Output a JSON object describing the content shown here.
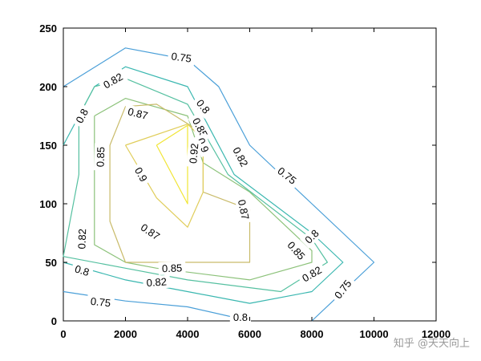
{
  "chart_data": {
    "type": "contour",
    "title": "",
    "xlabel": "",
    "ylabel": "",
    "xlim": [
      0,
      12000
    ],
    "ylim": [
      0,
      250
    ],
    "xticks": [
      0,
      2000,
      4000,
      6000,
      8000,
      10000,
      12000
    ],
    "yticks": [
      0,
      50,
      100,
      150,
      200,
      250
    ],
    "grid": false,
    "colormap": "parula",
    "levels": [
      {
        "value": 0.75,
        "color": "#4a9fd8",
        "paths": [
          [
            [
              0,
              200
            ],
            [
              2000,
              233
            ],
            [
              4000,
              223
            ],
            [
              5000,
              200
            ],
            [
              6000,
              150
            ],
            [
              8000,
              100
            ],
            [
              10000,
              50
            ],
            [
              8000,
              0
            ]
          ],
          [
            [
              0,
              25
            ],
            [
              2000,
              17
            ],
            [
              4000,
              12
            ],
            [
              6000,
              0
            ]
          ]
        ]
      },
      {
        "value": 0.8,
        "color": "#3ab7b0",
        "paths": [
          [
            [
              0,
              150
            ],
            [
              1000,
              200
            ],
            [
              2000,
              217
            ],
            [
              4000,
              200
            ],
            [
              5500,
              125
            ],
            [
              8000,
              75
            ],
            [
              9000,
              50
            ],
            [
              8000,
              25
            ],
            [
              6000,
              15
            ],
            [
              4000,
              25
            ],
            [
              2000,
              35
            ],
            [
              0,
              50
            ]
          ]
        ]
      },
      {
        "value": 0.82,
        "color": "#55c0a0",
        "paths": [
          [
            [
              500,
              175
            ],
            [
              1000,
              200
            ],
            [
              2000,
              207
            ],
            [
              4000,
              185
            ],
            [
              5300,
              125
            ],
            [
              8000,
              70
            ],
            [
              8500,
              50
            ],
            [
              7000,
              25
            ],
            [
              4000,
              35
            ],
            [
              2000,
              45
            ],
            [
              0,
              55
            ],
            [
              500,
              125
            ],
            [
              500,
              175
            ]
          ]
        ]
      },
      {
        "value": 0.85,
        "color": "#8cc27a",
        "paths": [
          [
            [
              1000,
              175
            ],
            [
              2000,
              190
            ],
            [
              4000,
              175
            ],
            [
              4500,
              135
            ],
            [
              6000,
              110
            ],
            [
              8000,
              60
            ],
            [
              8000,
              50
            ],
            [
              6000,
              35
            ],
            [
              3000,
              45
            ],
            [
              2000,
              50
            ],
            [
              1000,
              65
            ],
            [
              1000,
              120
            ],
            [
              1000,
              175
            ]
          ]
        ]
      },
      {
        "value": 0.87,
        "color": "#c9bb6a",
        "paths": [
          [
            [
              1500,
              150
            ],
            [
              2000,
              183
            ],
            [
              3000,
              185
            ],
            [
              4500,
              160
            ],
            [
              4500,
              110
            ],
            [
              6000,
              95
            ],
            [
              6000,
              50
            ],
            [
              4000,
              50
            ],
            [
              2000,
              50
            ],
            [
              1500,
              85
            ],
            [
              1500,
              150
            ]
          ]
        ]
      },
      {
        "value": 0.9,
        "color": "#e0cd5a",
        "paths": [
          [
            [
              2000,
              150
            ],
            [
              4000,
              168
            ],
            [
              4500,
              155
            ],
            [
              4500,
              110
            ],
            [
              4000,
              80
            ],
            [
              3000,
              105
            ],
            [
              2000,
              150
            ]
          ]
        ]
      },
      {
        "value": 0.92,
        "color": "#f1e534",
        "paths": [
          [
            [
              3000,
              150
            ],
            [
              4000,
              167
            ],
            [
              4000,
              100
            ],
            [
              3000,
              150
            ]
          ]
        ]
      }
    ],
    "labels": [
      {
        "text": "0.75",
        "x": 3800,
        "y": 225,
        "angle": 8
      },
      {
        "text": "0.75",
        "x": 7200,
        "y": 124,
        "angle": 38
      },
      {
        "text": "0.75",
        "x": 9000,
        "y": 27,
        "angle": -52
      },
      {
        "text": "0.75",
        "x": 1200,
        "y": 16,
        "angle": 6
      },
      {
        "text": "0.8",
        "x": 600,
        "y": 175,
        "angle": -62
      },
      {
        "text": "0.8",
        "x": 4500,
        "y": 183,
        "angle": 52
      },
      {
        "text": "0.8",
        "x": 8000,
        "y": 72,
        "angle": -45
      },
      {
        "text": "0.8",
        "x": 600,
        "y": 43,
        "angle": 18
      },
      {
        "text": "0.8",
        "x": 5700,
        "y": 3,
        "angle": 0
      },
      {
        "text": "0.82",
        "x": 1600,
        "y": 205,
        "angle": -30
      },
      {
        "text": "0.82",
        "x": 5700,
        "y": 140,
        "angle": 62
      },
      {
        "text": "0.82",
        "x": 8000,
        "y": 40,
        "angle": -30
      },
      {
        "text": "0.82",
        "x": 600,
        "y": 70,
        "angle": -88
      },
      {
        "text": "0.82",
        "x": 3000,
        "y": 33,
        "angle": -4
      },
      {
        "text": "0.85",
        "x": 1200,
        "y": 140,
        "angle": -88
      },
      {
        "text": "0.85",
        "x": 4400,
        "y": 165,
        "angle": 62
      },
      {
        "text": "0.85",
        "x": 7500,
        "y": 60,
        "angle": 48
      },
      {
        "text": "0.85",
        "x": 3500,
        "y": 45,
        "angle": -2
      },
      {
        "text": "0.87",
        "x": 2400,
        "y": 177,
        "angle": 14
      },
      {
        "text": "0.87",
        "x": 5800,
        "y": 95,
        "angle": 78
      },
      {
        "text": "0.87",
        "x": 2800,
        "y": 76,
        "angle": 34
      },
      {
        "text": "0.9",
        "x": 4500,
        "y": 150,
        "angle": 68
      },
      {
        "text": "0.9",
        "x": 2500,
        "y": 125,
        "angle": 60
      },
      {
        "text": "0.92",
        "x": 4200,
        "y": 143,
        "angle": -85
      }
    ]
  },
  "watermark": "知乎 @天天向上"
}
